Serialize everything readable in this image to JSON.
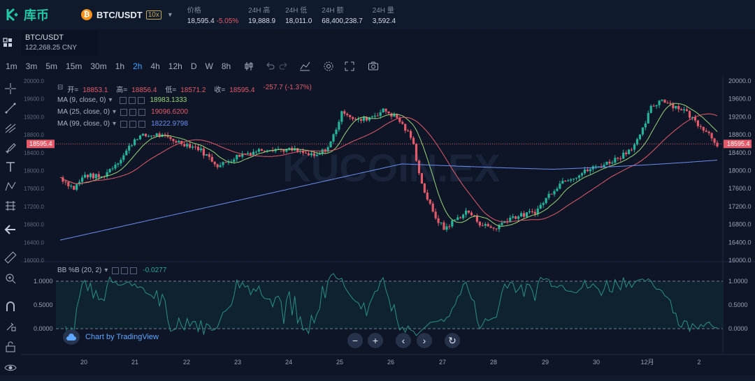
{
  "header": {
    "brand": "库币",
    "pair": "BTC/USDT",
    "leverage": "10x",
    "stats": [
      {
        "label": "价格",
        "value": "18,595.4",
        "extra": "-5.05%"
      },
      {
        "label": "24H 高",
        "value": "19,888.9"
      },
      {
        "label": "24H 低",
        "value": "18,011.0"
      },
      {
        "label": "24H 额",
        "value": "68,400,238.7"
      },
      {
        "label": "24H 量",
        "value": "3,592.4"
      }
    ]
  },
  "symbol": {
    "name": "BTC/USDT",
    "cny": "122,268.25 CNY"
  },
  "toolbar": {
    "timeframes": [
      "1m",
      "3m",
      "5m",
      "15m",
      "30m",
      "1h",
      "2h",
      "4h",
      "12h",
      "D",
      "W",
      "8h"
    ],
    "active": "2h"
  },
  "ohlc": {
    "open_label": "开=",
    "open": "18853.1",
    "high_label": "高=",
    "high": "18856.4",
    "low_label": "低=",
    "low": "18571.2",
    "close_label": "收=",
    "close": "18595.4",
    "change": "-257.7 (-1.37%)"
  },
  "indicators": [
    {
      "name": "MA (9, close, 0)",
      "value": "18983.1333",
      "color": "#9bd67a"
    },
    {
      "name": "MA (25, close, 0)",
      "value": "19096.6200",
      "color": "#e35b6a"
    },
    {
      "name": "MA (99, close, 0)",
      "value": "18222.9798",
      "color": "#6c8ff0"
    }
  ],
  "bb": {
    "name": "BB %B (20, 2)",
    "value": "-0.0277"
  },
  "price_axis": [
    "20000.0",
    "19600.0",
    "19200.0",
    "18800.0",
    "18400.0",
    "18000.0",
    "17600.0",
    "17200.0",
    "16800.0",
    "16400.0",
    "16000.0"
  ],
  "current_price": "18595.4",
  "bb_axis": [
    "1.0000",
    "0.5000",
    "0.0000"
  ],
  "date_axis": [
    "20",
    "21",
    "22",
    "23",
    "24",
    "25",
    "26",
    "27",
    "28",
    "29",
    "30",
    "12月",
    "2"
  ],
  "watermark": "KUCOIN.EX",
  "tradingview": "Chart by TradingView",
  "colors": {
    "up": "#25b49a",
    "down": "#e35b6a",
    "bg": "#0d1526"
  }
}
